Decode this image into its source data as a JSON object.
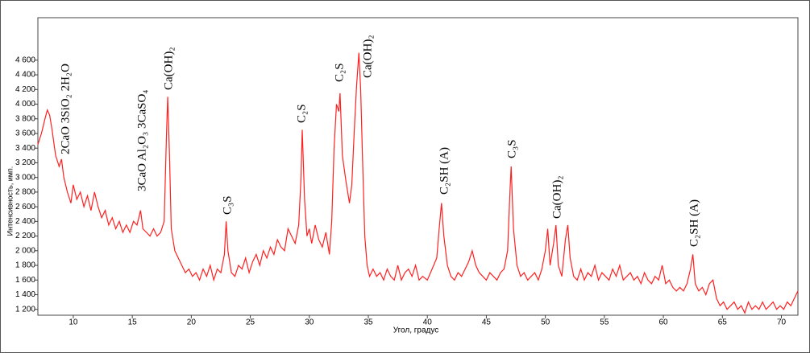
{
  "chart_data": {
    "type": "line",
    "xlabel": "Угол, градус",
    "ylabel": "Интенсивность, имп.",
    "color": "#ff2020",
    "xlim": [
      7,
      71.4
    ],
    "ylim": [
      1120,
      5180
    ],
    "xticks": [
      10,
      15,
      20,
      25,
      30,
      35,
      40,
      45,
      50,
      55,
      60,
      65,
      70
    ],
    "yticks": [
      {
        "value": 1200,
        "label": "1 200"
      },
      {
        "value": 1400,
        "label": "1 400"
      },
      {
        "value": 1600,
        "label": "1 600"
      },
      {
        "value": 1800,
        "label": "1 800"
      },
      {
        "value": 2000,
        "label": "2 000"
      },
      {
        "value": 2200,
        "label": "2 200"
      },
      {
        "value": 2400,
        "label": "2 400"
      },
      {
        "value": 2600,
        "label": "2 600"
      },
      {
        "value": 2800,
        "label": "2 800"
      },
      {
        "value": 3000,
        "label": "3 000"
      },
      {
        "value": 3200,
        "label": "3 200"
      },
      {
        "value": 3400,
        "label": "3 400"
      },
      {
        "value": 3600,
        "label": "3 600"
      },
      {
        "value": 3800,
        "label": "3 800"
      },
      {
        "value": 4000,
        "label": "4 000"
      },
      {
        "value": 4200,
        "label": "4 200"
      },
      {
        "value": 4400,
        "label": "4 400"
      },
      {
        "value": 4600,
        "label": "4 600"
      }
    ],
    "annotations": [
      "2CaO 3SiO₂ 2H₂O",
      "3CaO Al₂O₃ 3CaSO₄",
      "Ca(OH)₂",
      "C₃S",
      "C₂S",
      "C₂S",
      "Ca(OH)₂",
      "C₂SH (A)",
      "C₃S",
      "Ca(OH)₂",
      "C₂SH (A)"
    ],
    "x": [
      7.0,
      7.3,
      7.6,
      7.8,
      8.0,
      8.2,
      8.5,
      8.8,
      9.0,
      9.2,
      9.5,
      9.8,
      10.0,
      10.3,
      10.6,
      10.9,
      11.2,
      11.5,
      11.8,
      12.1,
      12.4,
      12.7,
      13.0,
      13.3,
      13.6,
      13.9,
      14.2,
      14.5,
      14.8,
      15.1,
      15.4,
      15.7,
      15.9,
      16.2,
      16.5,
      16.8,
      17.1,
      17.4,
      17.7,
      17.9,
      18.0,
      18.15,
      18.3,
      18.6,
      18.9,
      19.2,
      19.5,
      19.8,
      20.1,
      20.4,
      20.7,
      21.0,
      21.3,
      21.6,
      21.9,
      22.2,
      22.5,
      22.8,
      22.95,
      23.1,
      23.4,
      23.7,
      24.0,
      24.3,
      24.6,
      24.9,
      25.2,
      25.5,
      25.8,
      26.1,
      26.4,
      26.7,
      27.0,
      27.3,
      27.6,
      27.9,
      28.2,
      28.5,
      28.8,
      29.1,
      29.3,
      29.4,
      29.6,
      29.8,
      30.0,
      30.2,
      30.5,
      30.8,
      31.1,
      31.4,
      31.7,
      31.9,
      32.1,
      32.3,
      32.5,
      32.6,
      32.8,
      33.1,
      33.4,
      33.6,
      33.8,
      34.0,
      34.2,
      34.35,
      34.5,
      34.7,
      34.9,
      35.1,
      35.4,
      35.7,
      36.0,
      36.3,
      36.6,
      36.9,
      37.2,
      37.5,
      37.8,
      38.1,
      38.4,
      38.7,
      39.0,
      39.3,
      39.6,
      40.0,
      40.4,
      40.8,
      41.0,
      41.2,
      41.4,
      41.7,
      42.0,
      42.3,
      42.6,
      42.9,
      43.2,
      43.5,
      43.8,
      44.1,
      44.4,
      44.7,
      45.0,
      45.3,
      45.6,
      45.9,
      46.2,
      46.5,
      46.8,
      47.0,
      47.1,
      47.3,
      47.6,
      47.9,
      48.2,
      48.5,
      48.8,
      49.1,
      49.4,
      49.7,
      50.0,
      50.2,
      50.4,
      50.7,
      50.9,
      51.1,
      51.4,
      51.7,
      51.9,
      52.1,
      52.4,
      52.7,
      53.0,
      53.3,
      53.6,
      53.9,
      54.2,
      54.5,
      54.8,
      55.1,
      55.4,
      55.7,
      56.0,
      56.3,
      56.6,
      56.9,
      57.2,
      57.5,
      57.8,
      58.1,
      58.4,
      58.7,
      59.0,
      59.3,
      59.6,
      59.9,
      60.2,
      60.5,
      60.8,
      61.1,
      61.4,
      61.7,
      62.0,
      62.3,
      62.5,
      62.7,
      63.0,
      63.3,
      63.6,
      63.9,
      64.2,
      64.5,
      64.8,
      65.1,
      65.4,
      65.7,
      66.0,
      66.3,
      66.6,
      66.9,
      67.2,
      67.5,
      67.8,
      68.1,
      68.4,
      68.7,
      69.0,
      69.3,
      69.6,
      69.9,
      70.2,
      70.5,
      70.8,
      71.1,
      71.4
    ],
    "values": [
      3450,
      3600,
      3800,
      3920,
      3850,
      3650,
      3300,
      3150,
      3250,
      3000,
      2800,
      2650,
      2900,
      2700,
      2800,
      2600,
      2750,
      2550,
      2800,
      2600,
      2450,
      2550,
      2350,
      2450,
      2300,
      2400,
      2250,
      2350,
      2250,
      2400,
      2350,
      2550,
      2300,
      2250,
      2200,
      2300,
      2200,
      2250,
      2400,
      3600,
      4100,
      3300,
      2300,
      2000,
      1900,
      1800,
      1700,
      1750,
      1650,
      1700,
      1600,
      1750,
      1650,
      1800,
      1600,
      1750,
      1700,
      1950,
      2400,
      2000,
      1700,
      1650,
      1800,
      1750,
      1900,
      1700,
      1850,
      1950,
      1800,
      2000,
      1900,
      2050,
      1950,
      2150,
      2050,
      2000,
      2300,
      2200,
      2100,
      2350,
      3000,
      3650,
      2700,
      2200,
      2300,
      2100,
      2350,
      2150,
      2050,
      2250,
      1950,
      2400,
      3400,
      4000,
      3900,
      4150,
      3300,
      2950,
      2650,
      2900,
      3600,
      4250,
      4700,
      4200,
      3300,
      2200,
      1800,
      1650,
      1750,
      1650,
      1700,
      1600,
      1750,
      1650,
      1600,
      1800,
      1600,
      1700,
      1750,
      1650,
      1800,
      1600,
      1650,
      1600,
      1750,
      1900,
      2300,
      2650,
      2200,
      1800,
      1650,
      1600,
      1700,
      1650,
      1750,
      1850,
      2000,
      1800,
      1700,
      1650,
      1600,
      1700,
      1650,
      1600,
      1700,
      1750,
      2000,
      2800,
      3150,
      2300,
      1800,
      1650,
      1700,
      1600,
      1650,
      1700,
      1600,
      1750,
      2000,
      2300,
      1800,
      2100,
      2350,
      1800,
      1650,
      2150,
      2350,
      1900,
      1650,
      1600,
      1750,
      1600,
      1700,
      1650,
      1800,
      1600,
      1700,
      1650,
      1600,
      1750,
      1650,
      1800,
      1600,
      1650,
      1700,
      1600,
      1650,
      1550,
      1700,
      1600,
      1550,
      1650,
      1600,
      1800,
      1550,
      1600,
      1500,
      1450,
      1500,
      1450,
      1550,
      1750,
      1950,
      1550,
      1450,
      1500,
      1400,
      1550,
      1600,
      1350,
      1250,
      1300,
      1200,
      1250,
      1300,
      1200,
      1250,
      1150,
      1300,
      1200,
      1250,
      1200,
      1300,
      1200,
      1250,
      1300,
      1200,
      1250,
      1200,
      1300,
      1250,
      1350,
      1450
    ]
  }
}
